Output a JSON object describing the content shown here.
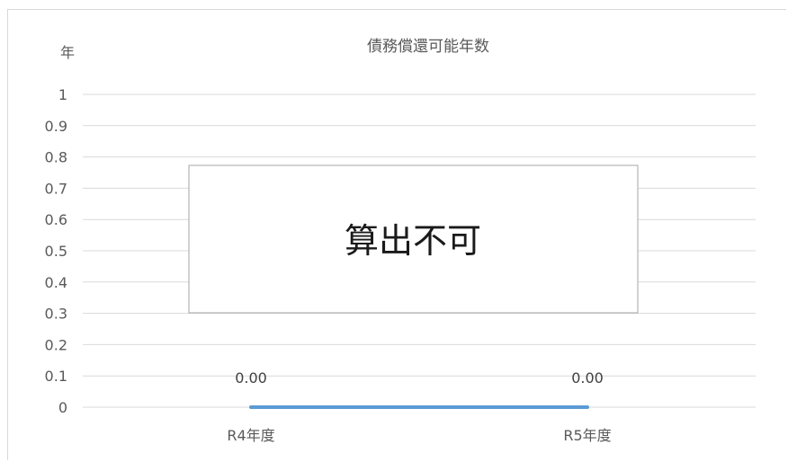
{
  "chart_data": {
    "type": "line",
    "title": "債務償還可能年数",
    "ylabel": "年",
    "xlabel": "",
    "categories": [
      "R4年度",
      "R5年度"
    ],
    "series": [
      {
        "values": [
          0,
          0
        ],
        "data_labels": [
          "0.00",
          "0.00"
        ]
      }
    ],
    "ylim": [
      0,
      1
    ],
    "yticks": [
      0,
      0.1,
      0.2,
      0.3,
      0.4,
      0.5,
      0.6,
      0.7,
      0.8,
      0.9,
      1
    ],
    "ytick_labels": [
      "0",
      "0.1",
      "0.2",
      "0.3",
      "0.4",
      "0.5",
      "0.6",
      "0.7",
      "0.8",
      "0.9",
      "1"
    ],
    "grid": true,
    "line_color": "#5b9bd5",
    "overlay_text": "算出不可"
  }
}
